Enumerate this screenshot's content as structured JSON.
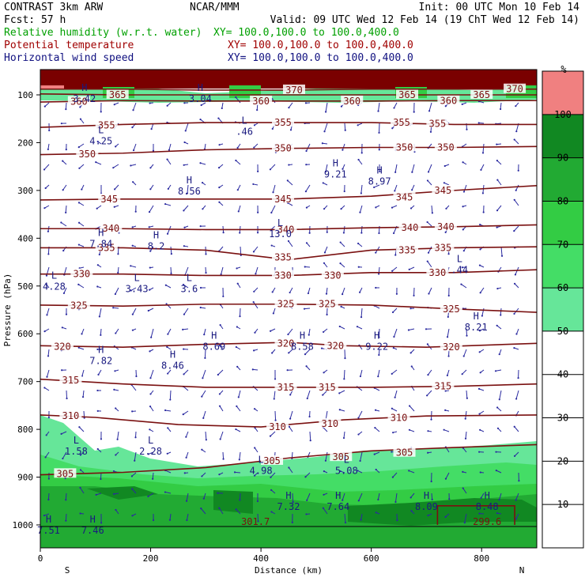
{
  "header": {
    "left": [
      "CONTRAST  3km ARW",
      "Fcst:    57 h"
    ],
    "center": "NCAR/MMM",
    "right": [
      "Init: 00 UTC Mon 10 Feb 14",
      "Valid: 09 UTC Wed 12 Feb 14 (19 ChT Wed 12 Feb 14)"
    ],
    "fields": [
      {
        "name": "Relative humidity (w.r.t. water)",
        "xy": "XY= 100.0,100.0 to 100.0,400.0",
        "color": "#00a000"
      },
      {
        "name": "Potential temperature",
        "xy": "XY= 100.0,100.0 to 100.0,400.0",
        "color": "#a00000"
      },
      {
        "name": "Horizontal wind speed",
        "xy": "XY= 100.0,100.0 to 100.0,400.0",
        "color": "#101080"
      }
    ]
  },
  "chart_data": {
    "type": "cross-section",
    "xlabel": "Distance (km)",
    "ylabel": "Pressure (hPa)",
    "xlim": [
      0,
      900
    ],
    "ylim": [
      1060,
      50
    ],
    "x_ticks": [
      0,
      200,
      400,
      600,
      800
    ],
    "y_ticks": [
      100,
      200,
      300,
      400,
      500,
      600,
      700,
      800,
      900,
      1000
    ],
    "x_end_labels": {
      "left": "S",
      "right": "N"
    },
    "colorbar": {
      "unit": "%",
      "levels": [
        10,
        20,
        30,
        40,
        50,
        60,
        70,
        80,
        90,
        100
      ],
      "bands": [
        {
          "from": 50,
          "to": 60,
          "color": "#66e699"
        },
        {
          "from": 60,
          "to": 70,
          "color": "#44dd66"
        },
        {
          "from": 70,
          "to": 80,
          "color": "#33cc44"
        },
        {
          "from": 80,
          "to": 90,
          "color": "#22aa33"
        },
        {
          "from": 90,
          "to": 100,
          "color": "#118822"
        },
        {
          "from": 100,
          "to": 110,
          "color": "#f08080"
        }
      ]
    },
    "theta_contours": [
      {
        "value": 305,
        "points": [
          [
            0,
            895
          ],
          [
            150,
            890
          ],
          [
            300,
            880
          ],
          [
            450,
            860
          ],
          [
            600,
            845
          ],
          [
            750,
            838
          ],
          [
            900,
            832
          ]
        ],
        "labels": [
          [
            45,
            893
          ],
          [
            420,
            866
          ],
          [
            545,
            858
          ],
          [
            660,
            849
          ]
        ]
      },
      {
        "value": 310,
        "points": [
          [
            0,
            770
          ],
          [
            100,
            775
          ],
          [
            250,
            790
          ],
          [
            400,
            795
          ],
          [
            550,
            780
          ],
          [
            700,
            772
          ],
          [
            900,
            770
          ]
        ],
        "labels": [
          [
            55,
            772
          ],
          [
            430,
            795
          ],
          [
            525,
            788
          ],
          [
            650,
            776
          ]
        ]
      },
      {
        "value": 315,
        "points": [
          [
            0,
            695
          ],
          [
            150,
            705
          ],
          [
            300,
            712
          ],
          [
            450,
            712
          ],
          [
            600,
            712
          ],
          [
            750,
            710
          ],
          [
            900,
            705
          ]
        ],
        "labels": [
          [
            55,
            697
          ],
          [
            445,
            712
          ],
          [
            520,
            712
          ],
          [
            730,
            710
          ]
        ]
      },
      {
        "value": 320,
        "points": [
          [
            0,
            625
          ],
          [
            150,
            628
          ],
          [
            300,
            622
          ],
          [
            450,
            618
          ],
          [
            550,
            625
          ],
          [
            700,
            628
          ],
          [
            900,
            620
          ]
        ],
        "labels": [
          [
            40,
            627
          ],
          [
            445,
            620
          ],
          [
            535,
            625
          ],
          [
            745,
            628
          ]
        ]
      },
      {
        "value": 325,
        "points": [
          [
            0,
            540
          ],
          [
            150,
            542
          ],
          [
            300,
            538
          ],
          [
            450,
            538
          ],
          [
            600,
            540
          ],
          [
            750,
            548
          ],
          [
            900,
            555
          ]
        ],
        "labels": [
          [
            70,
            541
          ],
          [
            445,
            538
          ],
          [
            520,
            538
          ],
          [
            745,
            548
          ]
        ]
      },
      {
        "value": 330,
        "points": [
          [
            0,
            475
          ],
          [
            150,
            475
          ],
          [
            300,
            478
          ],
          [
            450,
            478
          ],
          [
            600,
            472
          ],
          [
            750,
            472
          ],
          [
            900,
            466
          ]
        ],
        "labels": [
          [
            75,
            475
          ],
          [
            440,
            478
          ],
          [
            530,
            478
          ],
          [
            720,
            472
          ]
        ]
      },
      {
        "value": 335,
        "points": [
          [
            0,
            420
          ],
          [
            150,
            420
          ],
          [
            300,
            425
          ],
          [
            450,
            445
          ],
          [
            600,
            425
          ],
          [
            750,
            420
          ],
          [
            900,
            418
          ]
        ],
        "labels": [
          [
            120,
            420
          ],
          [
            440,
            440
          ],
          [
            665,
            425
          ],
          [
            730,
            420
          ]
        ]
      },
      {
        "value": 340,
        "points": [
          [
            0,
            380
          ],
          [
            150,
            380
          ],
          [
            300,
            382
          ],
          [
            450,
            382
          ],
          [
            600,
            378
          ],
          [
            750,
            376
          ],
          [
            900,
            372
          ]
        ],
        "labels": [
          [
            128,
            380
          ],
          [
            445,
            382
          ],
          [
            670,
            378
          ],
          [
            735,
            376
          ]
        ]
      },
      {
        "value": 345,
        "points": [
          [
            0,
            320
          ],
          [
            150,
            318
          ],
          [
            300,
            318
          ],
          [
            450,
            318
          ],
          [
            600,
            312
          ],
          [
            750,
            300
          ],
          [
            900,
            290
          ]
        ],
        "labels": [
          [
            125,
            318
          ],
          [
            440,
            318
          ],
          [
            660,
            314
          ],
          [
            730,
            300
          ]
        ]
      },
      {
        "value": 350,
        "points": [
          [
            0,
            225
          ],
          [
            150,
            222
          ],
          [
            300,
            215
          ],
          [
            450,
            212
          ],
          [
            600,
            210
          ],
          [
            750,
            210
          ],
          [
            900,
            208
          ]
        ],
        "labels": [
          [
            85,
            224
          ],
          [
            440,
            212
          ],
          [
            660,
            210
          ],
          [
            735,
            210
          ]
        ]
      },
      {
        "value": 355,
        "points": [
          [
            0,
            168
          ],
          [
            150,
            162
          ],
          [
            300,
            158
          ],
          [
            450,
            158
          ],
          [
            600,
            158
          ],
          [
            750,
            162
          ],
          [
            900,
            162
          ]
        ],
        "labels": [
          [
            120,
            164
          ],
          [
            440,
            158
          ],
          [
            655,
            158
          ],
          [
            720,
            160
          ]
        ]
      },
      {
        "value": 360,
        "points": [
          [
            0,
            115
          ],
          [
            150,
            112
          ],
          [
            300,
            113
          ],
          [
            450,
            113
          ],
          [
            600,
            113
          ],
          [
            750,
            112
          ],
          [
            900,
            112
          ]
        ],
        "labels": [
          [
            70,
            114
          ],
          [
            400,
            113
          ],
          [
            565,
            113
          ],
          [
            740,
            112
          ]
        ]
      },
      {
        "value": 365,
        "points": [
          [
            0,
            98
          ],
          [
            150,
            100
          ],
          [
            300,
            100
          ],
          [
            450,
            100
          ],
          [
            600,
            100
          ],
          [
            750,
            100
          ],
          [
            900,
            100
          ]
        ],
        "labels": [
          [
            140,
            100
          ],
          [
            665,
            100
          ],
          [
            800,
            100
          ]
        ]
      },
      {
        "value": 370,
        "points": [
          [
            0,
            88
          ],
          [
            150,
            88
          ],
          [
            300,
            90
          ],
          [
            450,
            90
          ],
          [
            600,
            88
          ],
          [
            750,
            88
          ],
          [
            900,
            88
          ]
        ],
        "labels": [
          [
            460,
            90
          ],
          [
            860,
            88
          ]
        ]
      }
    ],
    "theta_extra_labels": [
      {
        "text": "301.7",
        "x": 390,
        "p": 1000
      },
      {
        "text": "299.6",
        "x": 810,
        "p": 1000
      }
    ],
    "wind_extrema": [
      {
        "type": "L",
        "value": "4.25",
        "x": 110,
        "p": 180
      },
      {
        "type": "L",
        "value": ".46",
        "x": 370,
        "p": 160
      },
      {
        "type": "H",
        "value": "9.21",
        "x": 535,
        "p": 250
      },
      {
        "type": "H",
        "value": "8.97",
        "x": 615,
        "p": 265
      },
      {
        "type": "H",
        "value": "8.56",
        "x": 270,
        "p": 285
      },
      {
        "type": "H",
        "value": "7.84",
        "x": 110,
        "p": 395
      },
      {
        "type": "H",
        "value": "8.2",
        "x": 210,
        "p": 400
      },
      {
        "type": "L",
        "value": "13.0",
        "x": 435,
        "p": 375
      },
      {
        "type": "L",
        "value": "4.28",
        "x": 25,
        "p": 485
      },
      {
        "type": "L",
        "value": "3.43",
        "x": 175,
        "p": 490
      },
      {
        "type": "L",
        "value": "3.6",
        "x": 270,
        "p": 490
      },
      {
        "type": "L",
        "value": ".44",
        "x": 760,
        "p": 450
      },
      {
        "type": "H",
        "value": "8.21",
        "x": 790,
        "p": 570
      },
      {
        "type": "H",
        "value": "8.69",
        "x": 315,
        "p": 610
      },
      {
        "type": "H",
        "value": "8.58",
        "x": 475,
        "p": 610
      },
      {
        "type": "H",
        "value": "9.22",
        "x": 610,
        "p": 610
      },
      {
        "type": "H",
        "value": "7.82",
        "x": 110,
        "p": 640
      },
      {
        "type": "H",
        "value": "8.46",
        "x": 240,
        "p": 650
      },
      {
        "type": "L",
        "value": "1.58",
        "x": 65,
        "p": 830
      },
      {
        "type": "L",
        "value": "2.28",
        "x": 200,
        "p": 830
      },
      {
        "type": "L",
        "value": "4.98",
        "x": 400,
        "p": 870
      },
      {
        "type": "L",
        "value": "5.08",
        "x": 555,
        "p": 870
      },
      {
        "type": "H",
        "value": "7.32",
        "x": 450,
        "p": 945
      },
      {
        "type": "H",
        "value": "7.64",
        "x": 540,
        "p": 945
      },
      {
        "type": "H",
        "value": "8.09",
        "x": 700,
        "p": 945
      },
      {
        "type": "H",
        "value": "8.48",
        "x": 810,
        "p": 945
      },
      {
        "type": "H",
        "value": "7.51",
        "x": 15,
        "p": 995
      },
      {
        "type": "H",
        "value": "7.46",
        "x": 95,
        "p": 995
      },
      {
        "type": "H",
        "value": "3.42",
        "x": 80,
        "p": 92
      },
      {
        "type": "H",
        "value": "3.04",
        "x": 290,
        "p": 92
      }
    ]
  }
}
